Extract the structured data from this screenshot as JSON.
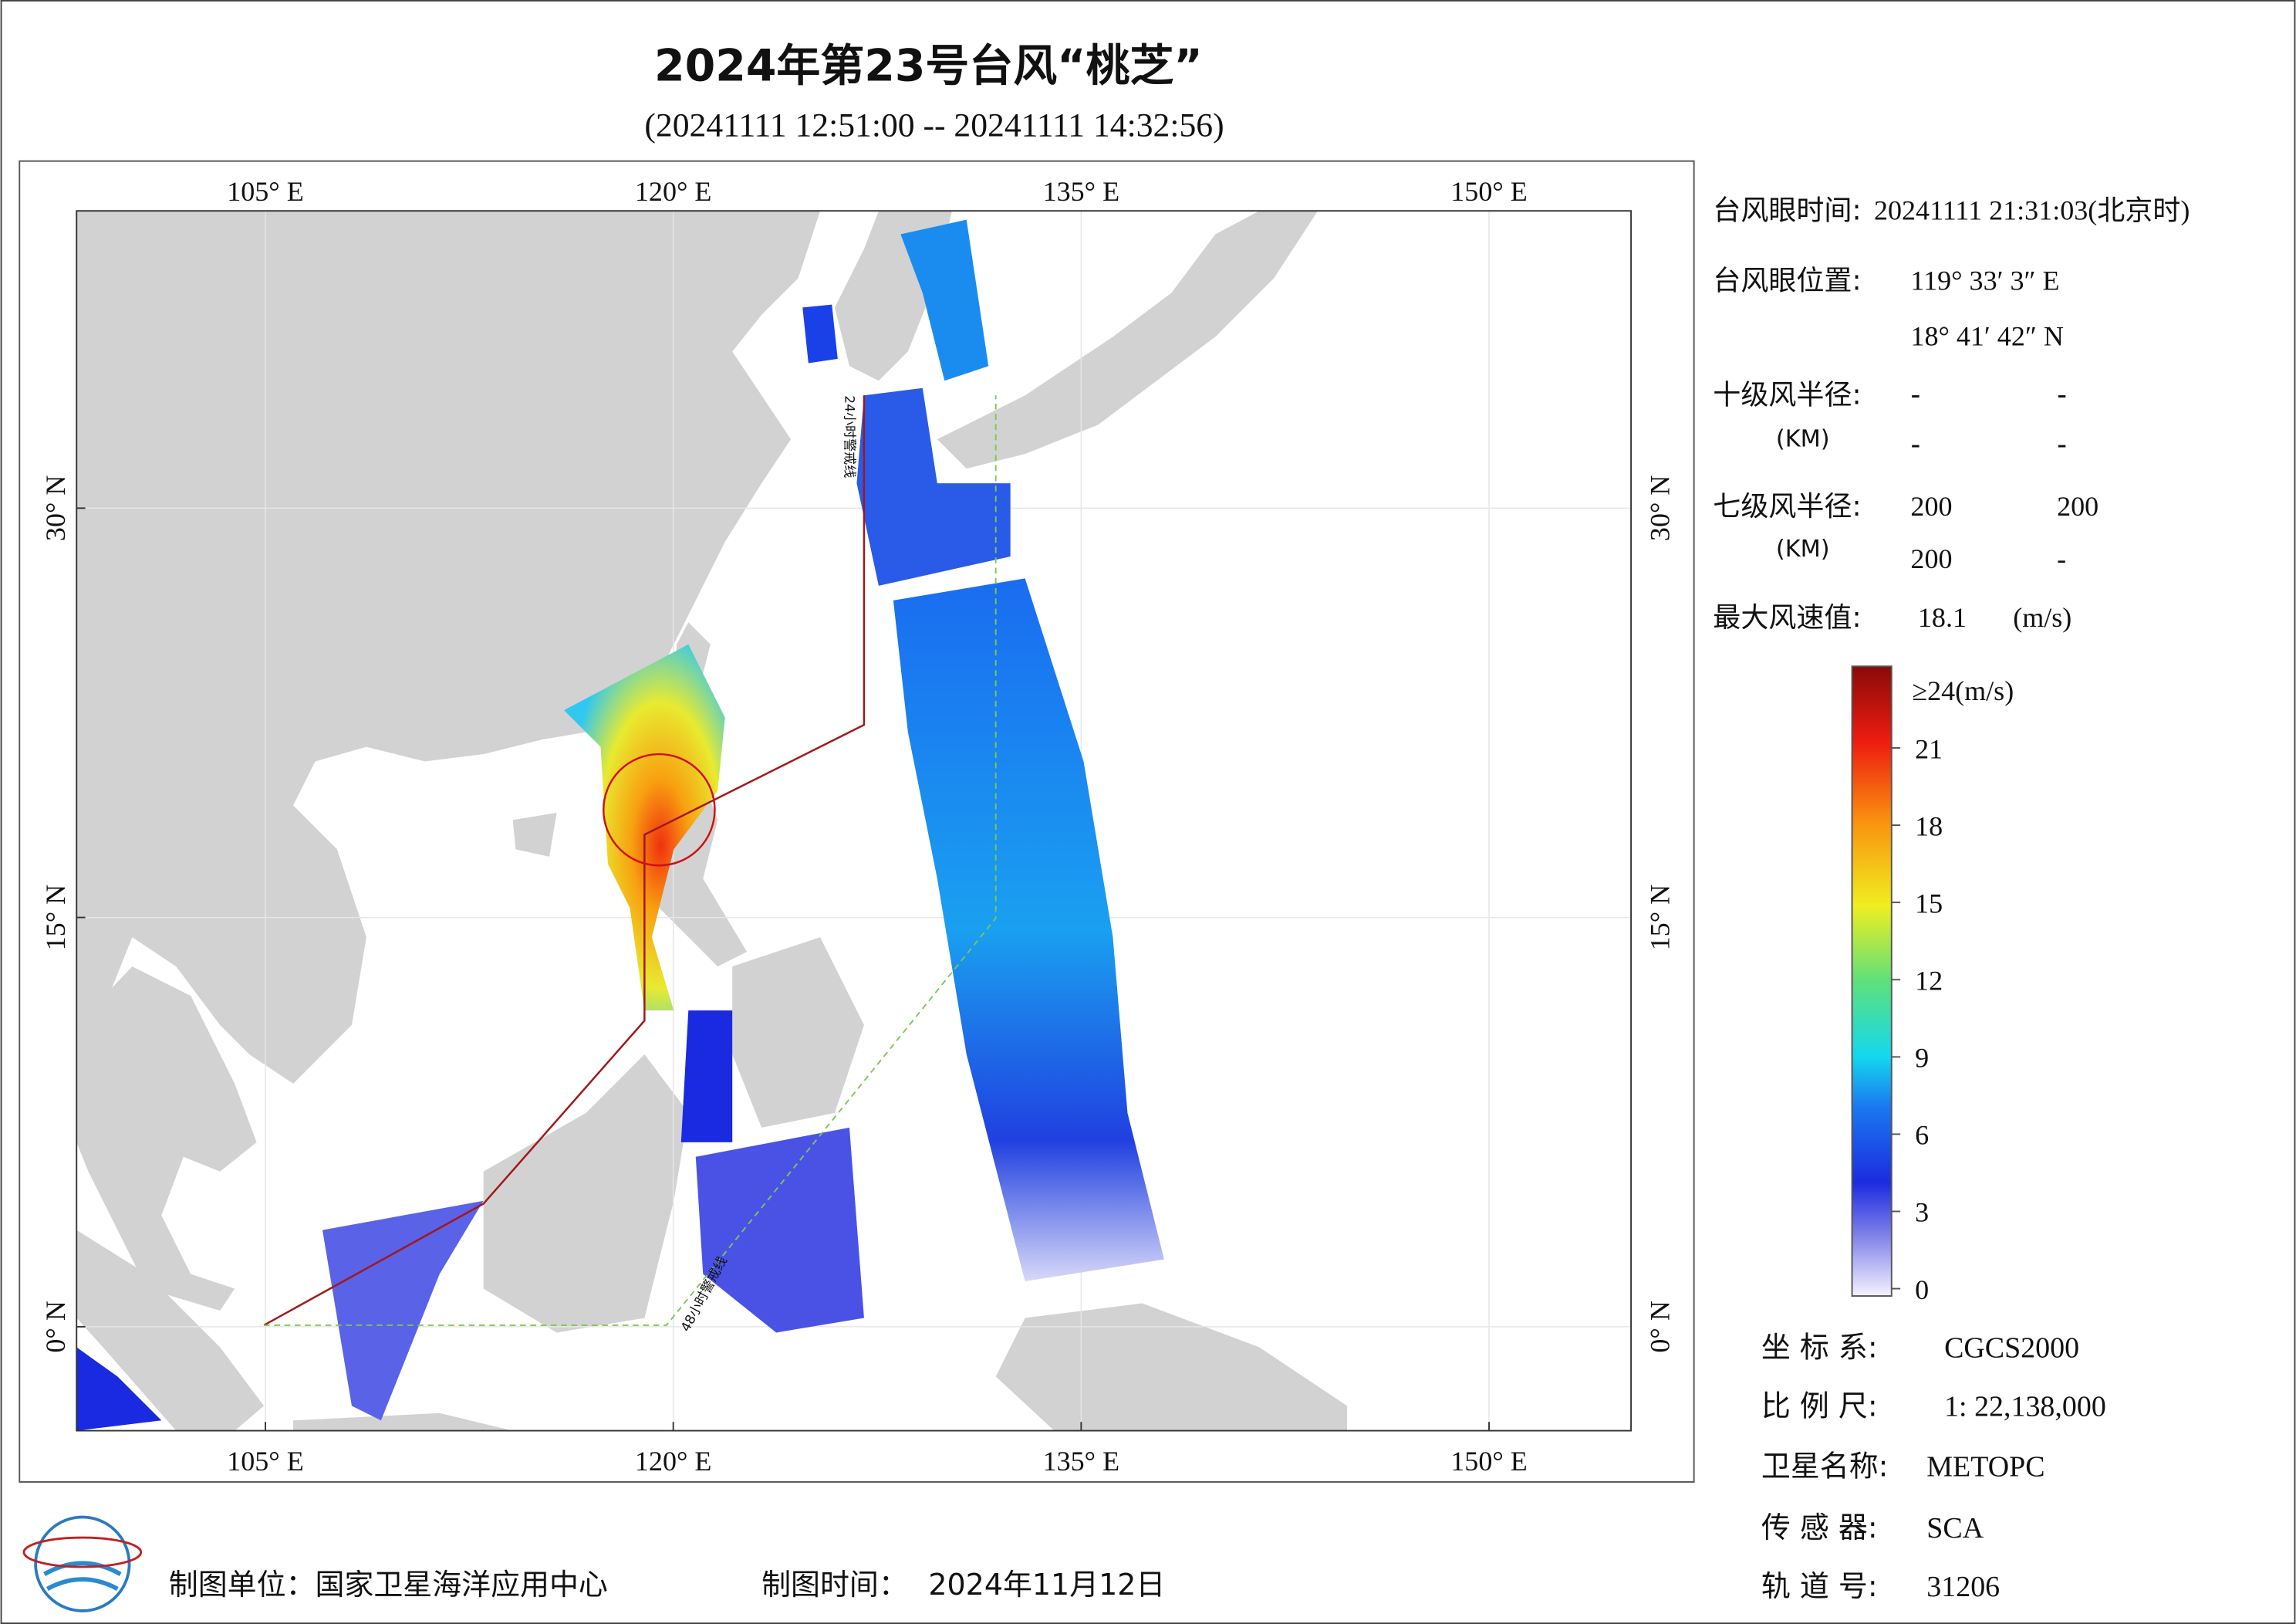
{
  "header": {
    "title": "2024年第23号台风“桃芝”",
    "subtitle": "(20241111 12:51:00 -- 20241111 14:32:56)"
  },
  "map": {
    "lon_ticks": [
      {
        "value": 105,
        "label": "105° E"
      },
      {
        "value": 120,
        "label": "120° E"
      },
      {
        "value": 135,
        "label": "135° E"
      },
      {
        "value": 150,
        "label": "150° E"
      }
    ],
    "lat_ticks": [
      {
        "value": 0,
        "label": "0° N"
      },
      {
        "value": 15,
        "label": "15° N"
      },
      {
        "value": 30,
        "label": "30° N"
      }
    ],
    "line_24h": "24小时警戒线",
    "line_48h": "48小时警戒线"
  },
  "info": {
    "eye_time_label": "台风眼时间:",
    "eye_time": "20241111 21:31:03(北京时)",
    "eye_pos_label": "台风眼位置:",
    "eye_lon": "119° 33′ 3″ E",
    "eye_lat": "18° 41′ 42″ N",
    "r10_label": "十级风半径:",
    "r10_unit": "(KM)",
    "r10": [
      "-",
      "-",
      "-",
      "-"
    ],
    "r7_label": "七级风半径:",
    "r7_unit": "(KM)",
    "r7": [
      "200",
      "200",
      "200",
      "-"
    ],
    "max_label": "最大风速值:",
    "max_value": "18.1",
    "max_unit": "(m/s)"
  },
  "colorbar": {
    "lim": [
      0,
      24
    ],
    "ticks": [
      0,
      3,
      6,
      9,
      12,
      15,
      18,
      21
    ],
    "max_label": "≥24(m/s)"
  },
  "meta": {
    "crs_label": "坐 标 系:",
    "crs": "CGCS2000",
    "scale_label": "比 例 尺:",
    "scale": "1: 22,138,000",
    "sat_label": "卫星名称:",
    "sat": "METOPC",
    "sensor_label": "传 感 器:",
    "sensor": "SCA",
    "orbit_label": "轨 道 号:",
    "orbit": "31206"
  },
  "footer": {
    "unit": "制图单位：国家卫星海洋应用中心",
    "time_label": "制图时间：",
    "time": "2024年11月12日"
  }
}
